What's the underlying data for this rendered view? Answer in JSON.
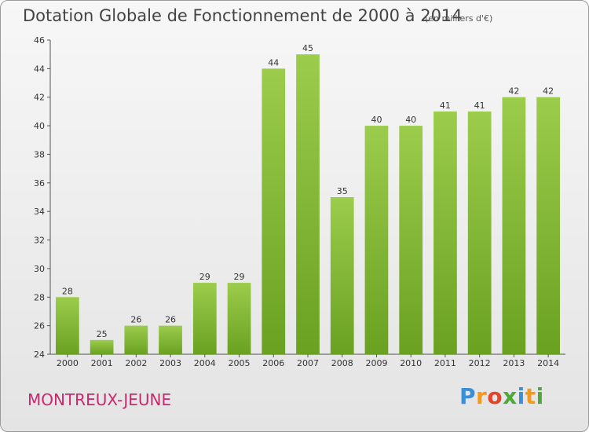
{
  "chart_data": {
    "type": "bar",
    "title": "Dotation Globale de Fonctionnement de 2000 à 2014",
    "unit_note": "(en milliers d'€)",
    "categories": [
      "2000",
      "2001",
      "2002",
      "2003",
      "2004",
      "2005",
      "2006",
      "2007",
      "2008",
      "2009",
      "2010",
      "2011",
      "2012",
      "2013",
      "2014"
    ],
    "values": [
      28,
      25,
      26,
      26,
      29,
      29,
      44,
      45,
      35,
      40,
      40,
      41,
      41,
      42,
      42
    ],
    "ylim": [
      24,
      46
    ],
    "yticks": [
      24,
      26,
      28,
      30,
      32,
      34,
      36,
      38,
      40,
      42,
      44,
      46
    ],
    "xlabel": "",
    "ylabel": "",
    "grid": false,
    "bar_color_top": "#9ccc4c",
    "bar_color_bottom": "#6aa121"
  },
  "commune": "MONTREUX-JEUNE",
  "brand": {
    "letters": [
      "P",
      "r",
      "o",
      "x",
      "i",
      "t",
      "i"
    ],
    "colors": [
      "#3a8fd8",
      "#f39a1e",
      "#e2452a",
      "#4ea83a",
      "#3a8fd8",
      "#f39a1e",
      "#4ea83a"
    ]
  }
}
